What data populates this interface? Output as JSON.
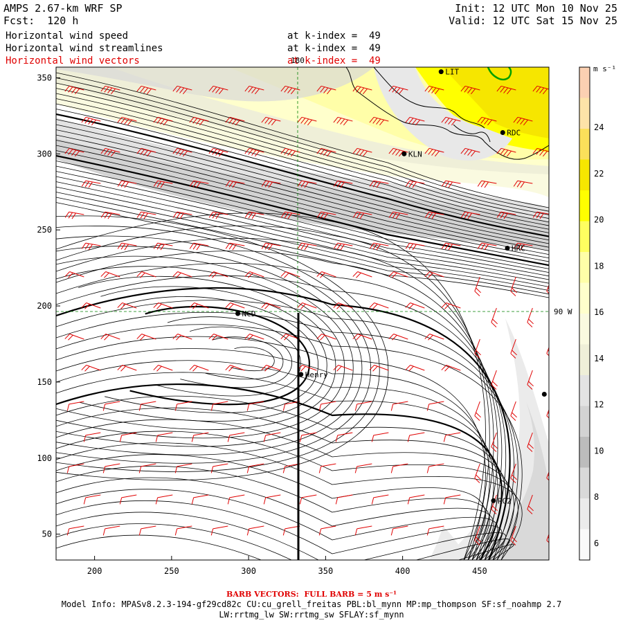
{
  "header": {
    "title": "AMPS 2.67-km WRF SP",
    "forecast": "Fcst:  120 h",
    "init": "Init: 12 UTC Mon 10 Nov 25",
    "valid": "Valid: 12 UTC Sat 15 Nov 25"
  },
  "fields": [
    {
      "name": "Horizontal wind speed",
      "level": "at k-index =  49",
      "color": "#000000"
    },
    {
      "name": "Horizontal wind streamlines",
      "level": "at k-index =  49",
      "color": "#000000"
    },
    {
      "name": "Horizontal wind vectors",
      "level": "at k-index =  49",
      "color": "#e00000"
    }
  ],
  "map": {
    "x_axis": {
      "ticks": [
        "200",
        "250",
        "300",
        "350",
        "400",
        "450"
      ],
      "range": [
        175,
        495
      ]
    },
    "y_axis": {
      "ticks": [
        "50",
        "100",
        "150",
        "200",
        "250",
        "300",
        "350"
      ],
      "range": [
        33,
        357
      ]
    },
    "grid_labels": {
      "meridian": "180",
      "parallel": "90 W"
    },
    "stations": [
      {
        "name": "LIT",
        "x": 425,
        "y": 354
      },
      {
        "name": "RDC",
        "x": 465,
        "y": 314
      },
      {
        "name": "KLN",
        "x": 401,
        "y": 300
      },
      {
        "name": "HRC",
        "x": 468,
        "y": 238
      },
      {
        "name": "NCD",
        "x": 293,
        "y": 195
      },
      {
        "name": "Henry",
        "x": 334,
        "y": 155
      },
      {
        "name": "",
        "x": 492,
        "y": 142
      },
      {
        "name": "RG2",
        "x": 459,
        "y": 72
      }
    ],
    "colors": {
      "barb": "#e00000",
      "streamline": "#000000",
      "coast": "#000000",
      "terrain": "#00a000",
      "guide": "#008000"
    }
  },
  "colorbar": {
    "unit": "m s⁻¹",
    "tick_labels": [
      "24",
      "22",
      "20",
      "18",
      "16",
      "14",
      "12",
      "10",
      "8",
      "6"
    ],
    "bands": [
      {
        "color": "#fbd0b2"
      },
      {
        "color": "#fde3a8"
      },
      {
        "color": "#fbe05a"
      },
      {
        "color": "#f6e600"
      },
      {
        "color": "#ffff00"
      },
      {
        "color": "#ffff60"
      },
      {
        "color": "#fffea8"
      },
      {
        "color": "#ffffcc"
      },
      {
        "color": "#fafae0"
      },
      {
        "color": "#efefd8"
      },
      {
        "color": "#e3e3e3"
      },
      {
        "color": "#d3d3d3"
      },
      {
        "color": "#bcbcbc"
      },
      {
        "color": "#d9d9d9"
      },
      {
        "color": "#ebebeb"
      },
      {
        "color": "#fafafa"
      }
    ]
  },
  "footer": {
    "barb_note": "BARB VECTORS:  FULL BARB = 5 m s⁻¹",
    "model_info": "Model Info: MPASv8.2.3-194-gf29cd82c CU:cu_grell_freitas PBL:bl_mynn MP:mp_thompson SF:sf_noahmp 2.7",
    "model_info2": "LW:rrtmg_lw SW:rrtmg_sw SFLAY:sf_mynn"
  }
}
